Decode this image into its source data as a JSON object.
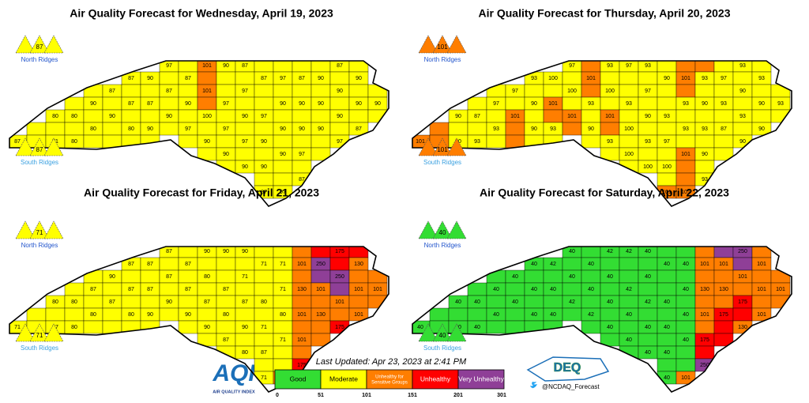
{
  "maps": [
    {
      "title": "Air Quality Forecast for Wednesday, April 19, 2023",
      "north_ridges": {
        "value": 87,
        "label": "North Ridges"
      },
      "south_ridges": {
        "value": 87,
        "label": "South Ridges"
      },
      "counties": [
        87,
        80,
        71,
        80,
        80,
        90,
        80,
        87,
        90,
        87,
        87,
        80,
        90,
        87,
        90,
        97,
        87,
        90,
        87,
        90,
        97,
        101,
        101,
        100,
        90,
        90,
        97,
        97,
        90,
        87,
        97,
        90,
        97,
        90,
        87,
        97,
        90,
        90,
        87,
        97,
        90,
        90,
        90,
        97,
        87,
        90,
        90,
        97,
        87,
        90,
        90,
        90,
        87,
        90,
        90,
        97,
        90,
        90,
        87,
        90
      ]
    },
    {
      "title": "Air Quality Forecast for Thursday, April 20, 2023",
      "north_ridges": {
        "value": 101,
        "label": "North Ridges"
      },
      "south_ridges": {
        "value": 101,
        "label": "South Ridges"
      },
      "counties": [
        101,
        90,
        90,
        87,
        93,
        97,
        93,
        97,
        101,
        93,
        90,
        90,
        100,
        101,
        93,
        97,
        100,
        101,
        101,
        93,
        90,
        93,
        100,
        101,
        93,
        97,
        93,
        100,
        100,
        93,
        97,
        90,
        93,
        100,
        90,
        93,
        97,
        100,
        101,
        101,
        93,
        93,
        101,
        101,
        93,
        90,
        93,
        90,
        93,
        97,
        93,
        87,
        93,
        90,
        93,
        90,
        93,
        90,
        90,
        93
      ]
    },
    {
      "title": "Air Quality Forecast for Friday, April 21, 2023",
      "north_ridges": {
        "value": 71,
        "label": "North Ridges"
      },
      "south_ridges": {
        "value": 71,
        "label": "South Ridges"
      },
      "counties": [
        71,
        80,
        87,
        80,
        80,
        87,
        80,
        90,
        87,
        87,
        87,
        80,
        87,
        87,
        90,
        87,
        87,
        90,
        87,
        87,
        90,
        90,
        80,
        87,
        90,
        90,
        87,
        80,
        87,
        90,
        71,
        87,
        90,
        80,
        71,
        80,
        71,
        87,
        71,
        71,
        71,
        80,
        71,
        101,
        101,
        130,
        101,
        101,
        175,
        250,
        101,
        130,
        175,
        250,
        101,
        175,
        130,
        101,
        101,
        101
      ]
    },
    {
      "title": "Air Quality Forecast for Saturday, April 22, 2023",
      "north_ridges": {
        "value": 40,
        "label": "North Ridges"
      },
      "south_ridges": {
        "value": 40,
        "label": "South Ridges"
      },
      "counties": [
        40,
        40,
        40,
        40,
        40,
        40,
        40,
        40,
        40,
        40,
        40,
        40,
        42,
        40,
        40,
        40,
        40,
        42,
        40,
        40,
        42,
        42,
        40,
        40,
        40,
        42,
        42,
        40,
        40,
        40,
        40,
        42,
        40,
        40,
        40,
        40,
        40,
        40,
        40,
        40,
        40,
        40,
        40,
        101,
        101,
        130,
        101,
        175,
        250,
        101,
        130,
        175,
        250,
        101,
        175,
        130,
        101,
        101,
        101,
        101
      ]
    }
  ],
  "last_updated": "Last Updated: Apr 23, 2023 at 2:41 PM",
  "legend": {
    "categories": [
      {
        "label": "Good",
        "color": "#33dd33"
      },
      {
        "label": "Moderate",
        "color": "#ffff00"
      },
      {
        "label": "Unhealthy for Sensitive Groups",
        "color": "#ff7e00"
      },
      {
        "label": "Unhealthy",
        "color": "#ff0000"
      },
      {
        "label": "Very Unhealthy",
        "color": "#8f3f97"
      }
    ],
    "ticks": [
      0,
      51,
      101,
      151,
      201,
      301
    ]
  },
  "aqi_logo": {
    "mark": "AQI",
    "caption": "AIR QUALITY INDEX"
  },
  "deq_logo": "DEQ",
  "twitter": "@NCDAQ_Forecast"
}
